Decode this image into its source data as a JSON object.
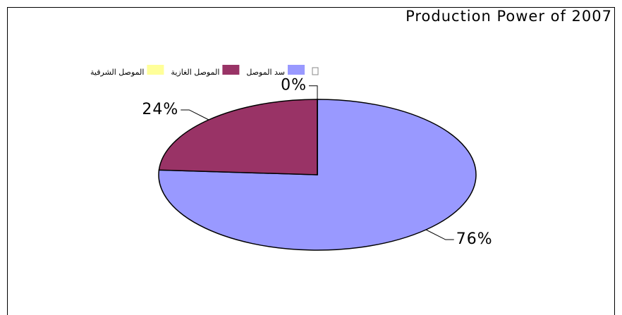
{
  "chart_data": {
    "type": "pie",
    "title": "Production Power of 2007",
    "categories": [
      "سد الموصل",
      "الموصل الغازية",
      "الموصل الشرقية"
    ],
    "values": [
      76,
      24,
      0
    ],
    "value_labels": [
      "76%",
      "24%",
      "0%"
    ],
    "colors": [
      "#9999ff",
      "#993366",
      "#ffff99"
    ]
  }
}
